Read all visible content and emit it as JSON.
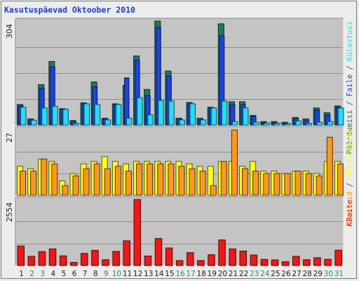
{
  "chart_data": [
    {
      "panel": "top",
      "type": "bar",
      "title": "Kasutuspäevad Oktoober 2010",
      "y_tick_labels": [
        "304"
      ],
      "categories": [
        "1",
        "2",
        "3",
        "4",
        "5",
        "6",
        "7",
        "8",
        "9",
        "10",
        "11",
        "12",
        "13",
        "14",
        "15",
        "16",
        "17",
        "18",
        "19",
        "20",
        "21",
        "22",
        "23",
        "24",
        "25",
        "26",
        "27",
        "28",
        "29",
        "30",
        "31"
      ],
      "weekend_days": [
        "2",
        "3",
        "9",
        "10",
        "16",
        "17",
        "23",
        "24",
        "30",
        "31"
      ],
      "series": [
        {
          "name": "Pöördumisi",
          "color": "#1e7a5c",
          "values": [
            60,
            18,
            118,
            186,
            48,
            13,
            65,
            126,
            20,
            62,
            116,
            202,
            104,
            304,
            158,
            20,
            66,
            20,
            52,
            296,
            68,
            68,
            28,
            10,
            10,
            8,
            22,
            18,
            50,
            36,
            56
          ]
        },
        {
          "name": "Faile",
          "color": "#1c44e0",
          "values": [
            56,
            14,
            108,
            170,
            46,
            10,
            62,
            112,
            18,
            60,
            138,
            190,
            86,
            286,
            144,
            18,
            62,
            16,
            50,
            262,
            60,
            60,
            26,
            8,
            8,
            6,
            20,
            14,
            44,
            30,
            52
          ]
        },
        {
          "name": "Külastusi",
          "color": "#26dcfc",
          "values": [
            52,
            14,
            50,
            55,
            46,
            5,
            62,
            60,
            15,
            60,
            20,
            80,
            30,
            72,
            70,
            15,
            62,
            15,
            50,
            70,
            10,
            50,
            8,
            6,
            5,
            4,
            12,
            5,
            8,
            10,
            50
          ]
        }
      ]
    },
    {
      "panel": "middle",
      "type": "bar",
      "y_tick_labels": [
        "27"
      ],
      "categories": [
        "1",
        "2",
        "3",
        "4",
        "5",
        "6",
        "7",
        "8",
        "9",
        "10",
        "11",
        "12",
        "13",
        "14",
        "15",
        "16",
        "17",
        "18",
        "19",
        "20",
        "21",
        "22",
        "23",
        "24",
        "25",
        "26",
        "27",
        "28",
        "29",
        "30",
        "31"
      ],
      "series": [
        {
          "name": "Külastajaid",
          "color": "#fcfc20",
          "values": [
            12,
            11,
            15,
            14,
            6,
            9,
            13,
            14,
            16,
            14,
            13,
            14,
            14,
            14,
            14,
            14,
            13,
            12,
            12,
            14,
            14,
            12,
            14,
            10,
            10,
            9,
            10,
            10,
            9,
            14,
            14
          ]
        },
        {
          "name": "Arvuteid",
          "color": "#fc9820",
          "values": [
            10,
            10,
            15,
            13,
            4,
            8,
            11,
            13,
            11,
            12,
            10,
            13,
            13,
            13,
            13,
            12,
            11,
            10,
            4,
            14,
            27,
            11,
            10,
            9,
            9,
            9,
            10,
            9,
            8,
            24,
            13
          ]
        }
      ]
    },
    {
      "panel": "bottom",
      "type": "bar",
      "y_tick_labels": [
        "2554"
      ],
      "categories": [
        "1",
        "2",
        "3",
        "4",
        "5",
        "6",
        "7",
        "8",
        "9",
        "10",
        "11",
        "12",
        "13",
        "14",
        "15",
        "16",
        "17",
        "18",
        "19",
        "20",
        "21",
        "22",
        "23",
        "24",
        "25",
        "26",
        "27",
        "28",
        "29",
        "30",
        "31"
      ],
      "series": [
        {
          "name": "KBaite",
          "color": "#ee1818",
          "values": [
            756,
            356,
            540,
            644,
            375,
            122,
            468,
            588,
            225,
            547,
            957,
            2554,
            368,
            1049,
            680,
            193,
            498,
            195,
            419,
            991,
            643,
            560,
            408,
            238,
            218,
            148,
            356,
            225,
            303,
            240,
            593
          ]
        }
      ]
    }
  ],
  "right_legend": {
    "top": [
      {
        "text": "Pöördumisi",
        "color": "#1e7a5c"
      },
      {
        "text": " / ",
        "color": "#555555"
      },
      {
        "text": "Faile",
        "color": "#1c44e0"
      },
      {
        "text": " / ",
        "color": "#555555"
      },
      {
        "text": "Külastusi",
        "color": "#26dcfc"
      }
    ],
    "middle": [
      {
        "text": "Arvuteid",
        "color": "#fc9820"
      },
      {
        "text": " / ",
        "color": "#555555"
      },
      {
        "text": "Külastajaid",
        "color": "#fcfc20"
      }
    ],
    "bottom": [
      {
        "text": "KBaite",
        "color": "#ee1818"
      }
    ]
  },
  "colors": {
    "plot_bg": "#c4c4c4",
    "weekday_label": "#222222",
    "weekend_label": "#1c9a4c"
  }
}
